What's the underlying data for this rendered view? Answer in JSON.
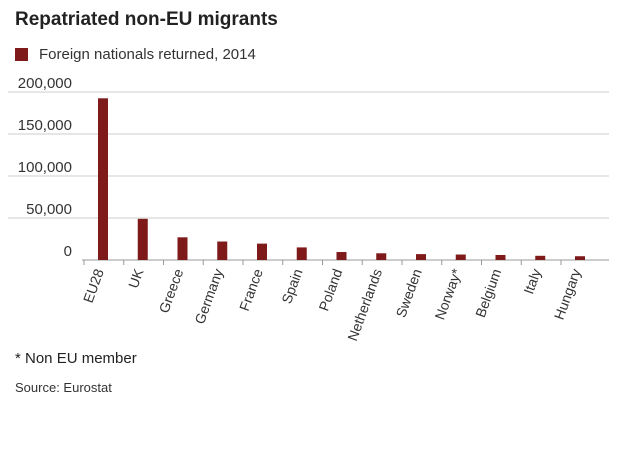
{
  "chart_data": {
    "type": "bar",
    "title": "Repatriated non-EU migrants",
    "series": [
      {
        "name": "Foreign nationals returned, 2014",
        "values": [
          192500,
          49000,
          27000,
          22000,
          19500,
          15000,
          9500,
          8000,
          7000,
          6500,
          6000,
          5000,
          4500
        ]
      }
    ],
    "categories": [
      "EU28",
      "UK",
      "Greece",
      "Germany",
      "France",
      "Spain",
      "Poland",
      "Netherlands",
      "Sweden",
      "Norway*",
      "Belgium",
      "Italy",
      "Hungary"
    ],
    "y_ticks": [
      "0",
      "50,000",
      "100,000",
      "150,000",
      "200,000"
    ],
    "ylim": [
      0,
      200000
    ],
    "grid": true,
    "xlabel": "",
    "ylabel": "",
    "legend": "top-left"
  },
  "colors": {
    "bar": "#7f1a1a",
    "grid": "#cccccc",
    "axis": "#999999"
  },
  "footnote": "* Non EU member",
  "source": "Source: Eurostat"
}
